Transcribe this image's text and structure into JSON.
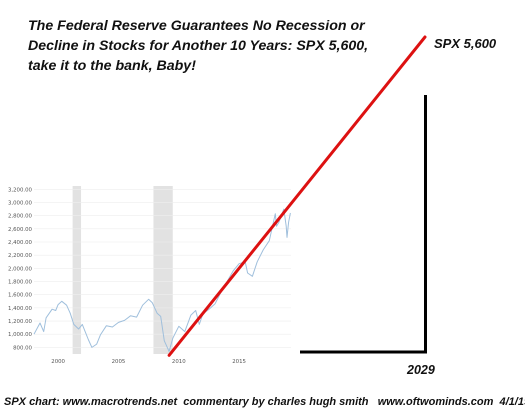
{
  "title_lines": [
    "The Federal Reserve Guarantees No Recession or",
    "Decline in Stocks for Another 10 Years: SPX 5,600,",
    "take it to the bank, Baby!"
  ],
  "target_label": "SPX 5,600",
  "target_year_label": "2029",
  "caption": "SPX chart: www.macrotrends.net  commentary by charles hugh smith   www.oftwominds.com  4/1/19",
  "colors": {
    "series": "#9fbfdc",
    "projection": "#dd1111",
    "recession": "#e2e2e2",
    "annotation": "#000000"
  },
  "chart_data": {
    "type": "line",
    "title": "",
    "xlabel": "",
    "ylabel": "",
    "xlim": [
      1998.0,
      2019.3
    ],
    "ylim": [
      700,
      3250
    ],
    "y_ticks": [
      800,
      1000,
      1200,
      1400,
      1600,
      1800,
      2000,
      2200,
      2400,
      2600,
      2800,
      3000,
      3200
    ],
    "y_tick_labels": [
      "800.00",
      "1,000.00",
      "1,200.00",
      "1,400.00",
      "1,600.00",
      "1,800.00",
      "2,000.00",
      "2,200.00",
      "2,400.00",
      "2,600.00",
      "2,800.00",
      "3,000.00",
      "3,200.00"
    ],
    "x_ticks": [
      2000,
      2005,
      2010,
      2015
    ],
    "x_tick_labels": [
      "2000",
      "2005",
      "2010",
      "2015"
    ],
    "grid": true,
    "recessions": [
      [
        2001.2,
        2001.9
      ],
      [
        2007.9,
        2009.5
      ]
    ],
    "series": [
      {
        "x": [
          1998.0,
          1998.5,
          1998.8,
          1999.0,
          1999.5,
          1999.8,
          2000.0,
          2000.3,
          2000.7,
          2001.0,
          2001.3,
          2001.7,
          2002.0,
          2002.5,
          2002.8,
          2003.2,
          2003.5,
          2004.0,
          2004.5,
          2005.0,
          2005.5,
          2006.0,
          2006.5,
          2007.0,
          2007.5,
          2007.8,
          2008.2,
          2008.5,
          2008.8,
          2009.2,
          2009.5,
          2010.0,
          2010.5,
          2011.0,
          2011.4,
          2011.7,
          2012.0,
          2012.5,
          2013.0,
          2013.5,
          2014.0,
          2014.5,
          2015.0,
          2015.5,
          2015.7,
          2016.1,
          2016.5,
          2017.0,
          2017.5,
          2018.0,
          2018.1,
          2018.3,
          2018.7,
          2018.9,
          2018.97,
          2019.1,
          2019.25
        ],
        "y": [
          1000,
          1170,
          1040,
          1250,
          1380,
          1360,
          1450,
          1500,
          1440,
          1320,
          1150,
          1080,
          1150,
          920,
          800,
          850,
          990,
          1130,
          1110,
          1180,
          1210,
          1280,
          1260,
          1440,
          1530,
          1480,
          1320,
          1270,
          900,
          740,
          940,
          1120,
          1040,
          1290,
          1360,
          1150,
          1310,
          1380,
          1460,
          1640,
          1800,
          1960,
          2070,
          2100,
          1930,
          1880,
          2100,
          2280,
          2420,
          2830,
          2640,
          2700,
          2900,
          2640,
          2470,
          2700,
          2840
        ]
      }
    ],
    "projection": {
      "x": [
        2009.2,
        2029.0
      ],
      "y": [
        680,
        5600
      ],
      "end_label": "SPX 5,600",
      "end_year": "2029"
    }
  }
}
